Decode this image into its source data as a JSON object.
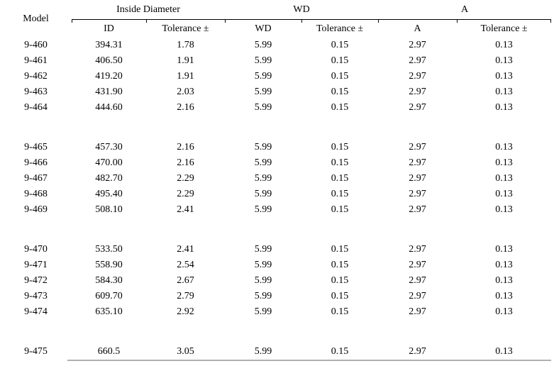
{
  "table": {
    "model_header": "Model",
    "groups": [
      {
        "label": "Inside Diameter",
        "sub": [
          "ID",
          "Tolerance ±"
        ]
      },
      {
        "label": "WD",
        "sub": [
          "WD",
          "Tolerance ±"
        ]
      },
      {
        "label": "A",
        "sub": [
          "A",
          "Tolerance ±"
        ]
      }
    ],
    "row_groups": [
      [
        [
          "9-460",
          "394.31",
          "1.78",
          "5.99",
          "0.15",
          "2.97",
          "0.13"
        ],
        [
          "9-461",
          "406.50",
          "1.91",
          "5.99",
          "0.15",
          "2.97",
          "0.13"
        ],
        [
          "9-462",
          "419.20",
          "1.91",
          "5.99",
          "0.15",
          "2.97",
          "0.13"
        ],
        [
          "9-463",
          "431.90",
          "2.03",
          "5.99",
          "0.15",
          "2.97",
          "0.13"
        ],
        [
          "9-464",
          "444.60",
          "2.16",
          "5.99",
          "0.15",
          "2.97",
          "0.13"
        ]
      ],
      [
        [
          "9-465",
          "457.30",
          "2.16",
          "5.99",
          "0.15",
          "2.97",
          "0.13"
        ],
        [
          "9-466",
          "470.00",
          "2.16",
          "5.99",
          "0.15",
          "2.97",
          "0.13"
        ],
        [
          "9-467",
          "482.70",
          "2.29",
          "5.99",
          "0.15",
          "2.97",
          "0.13"
        ],
        [
          "9-468",
          "495.40",
          "2.29",
          "5.99",
          "0.15",
          "2.97",
          "0.13"
        ],
        [
          "9-469",
          "508.10",
          "2.41",
          "5.99",
          "0.15",
          "2.97",
          "0.13"
        ]
      ],
      [
        [
          "9-470",
          "533.50",
          "2.41",
          "5.99",
          "0.15",
          "2.97",
          "0.13"
        ],
        [
          "9-471",
          "558.90",
          "2.54",
          "5.99",
          "0.15",
          "2.97",
          "0.13"
        ],
        [
          "9-472",
          "584.30",
          "2.67",
          "5.99",
          "0.15",
          "2.97",
          "0.13"
        ],
        [
          "9-473",
          "609.70",
          "2.79",
          "5.99",
          "0.15",
          "2.97",
          "0.13"
        ],
        [
          "9-474",
          "635.10",
          "2.92",
          "5.99",
          "0.15",
          "2.97",
          "0.13"
        ]
      ],
      [
        [
          "9-475",
          "660.5",
          "3.05",
          "5.99",
          "0.15",
          "2.97",
          "0.13"
        ]
      ]
    ]
  },
  "colors": {
    "text": "#000000",
    "header_rule": "#000000",
    "bottom_rule": "#b0b0b0",
    "background": "#ffffff"
  }
}
